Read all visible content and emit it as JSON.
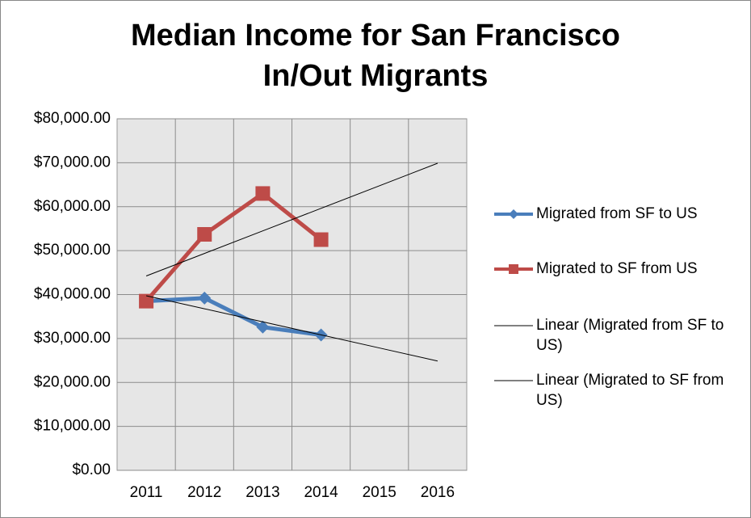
{
  "chart_data": {
    "type": "line",
    "title": [
      "Median Income for San Francisco",
      "In/Out Migrants"
    ],
    "categories": [
      "2011",
      "2012",
      "2013",
      "2014",
      "2015",
      "2016"
    ],
    "series": [
      {
        "name": "Migrated from SF to US",
        "color": "#4a7ebb",
        "marker": "diamond",
        "width": 5,
        "values": [
          38500,
          39200,
          32600,
          30800,
          null,
          null
        ]
      },
      {
        "name": "Migrated to SF from US",
        "color": "#be4b48",
        "marker": "square",
        "width": 5,
        "values": [
          38500,
          53700,
          63000,
          52500,
          null,
          null
        ]
      },
      {
        "name": "Linear (Migrated from SF to US)",
        "color": "#000000",
        "marker": "none",
        "width": 1,
        "values": [
          39730,
          36760,
          33790,
          30820,
          27850,
          24880
        ]
      },
      {
        "name": "Linear (Migrated to SF from US)",
        "color": "#000000",
        "marker": "none",
        "width": 1,
        "values": [
          44230,
          49360,
          54490,
          59620,
          64750,
          69880
        ]
      }
    ],
    "ylim": [
      0,
      80000
    ],
    "yticks": [
      {
        "value": 0,
        "label": "$0.00"
      },
      {
        "value": 10000,
        "label": "$10,000.00"
      },
      {
        "value": 20000,
        "label": "$20,000.00"
      },
      {
        "value": 30000,
        "label": "$30,000.00"
      },
      {
        "value": 40000,
        "label": "$40,000.00"
      },
      {
        "value": 50000,
        "label": "$50,000.00"
      },
      {
        "value": 60000,
        "label": "$60,000.00"
      },
      {
        "value": 70000,
        "label": "$70,000.00"
      },
      {
        "value": 80000,
        "label": "$80,000.00"
      }
    ],
    "grid": true,
    "legend": "right"
  }
}
